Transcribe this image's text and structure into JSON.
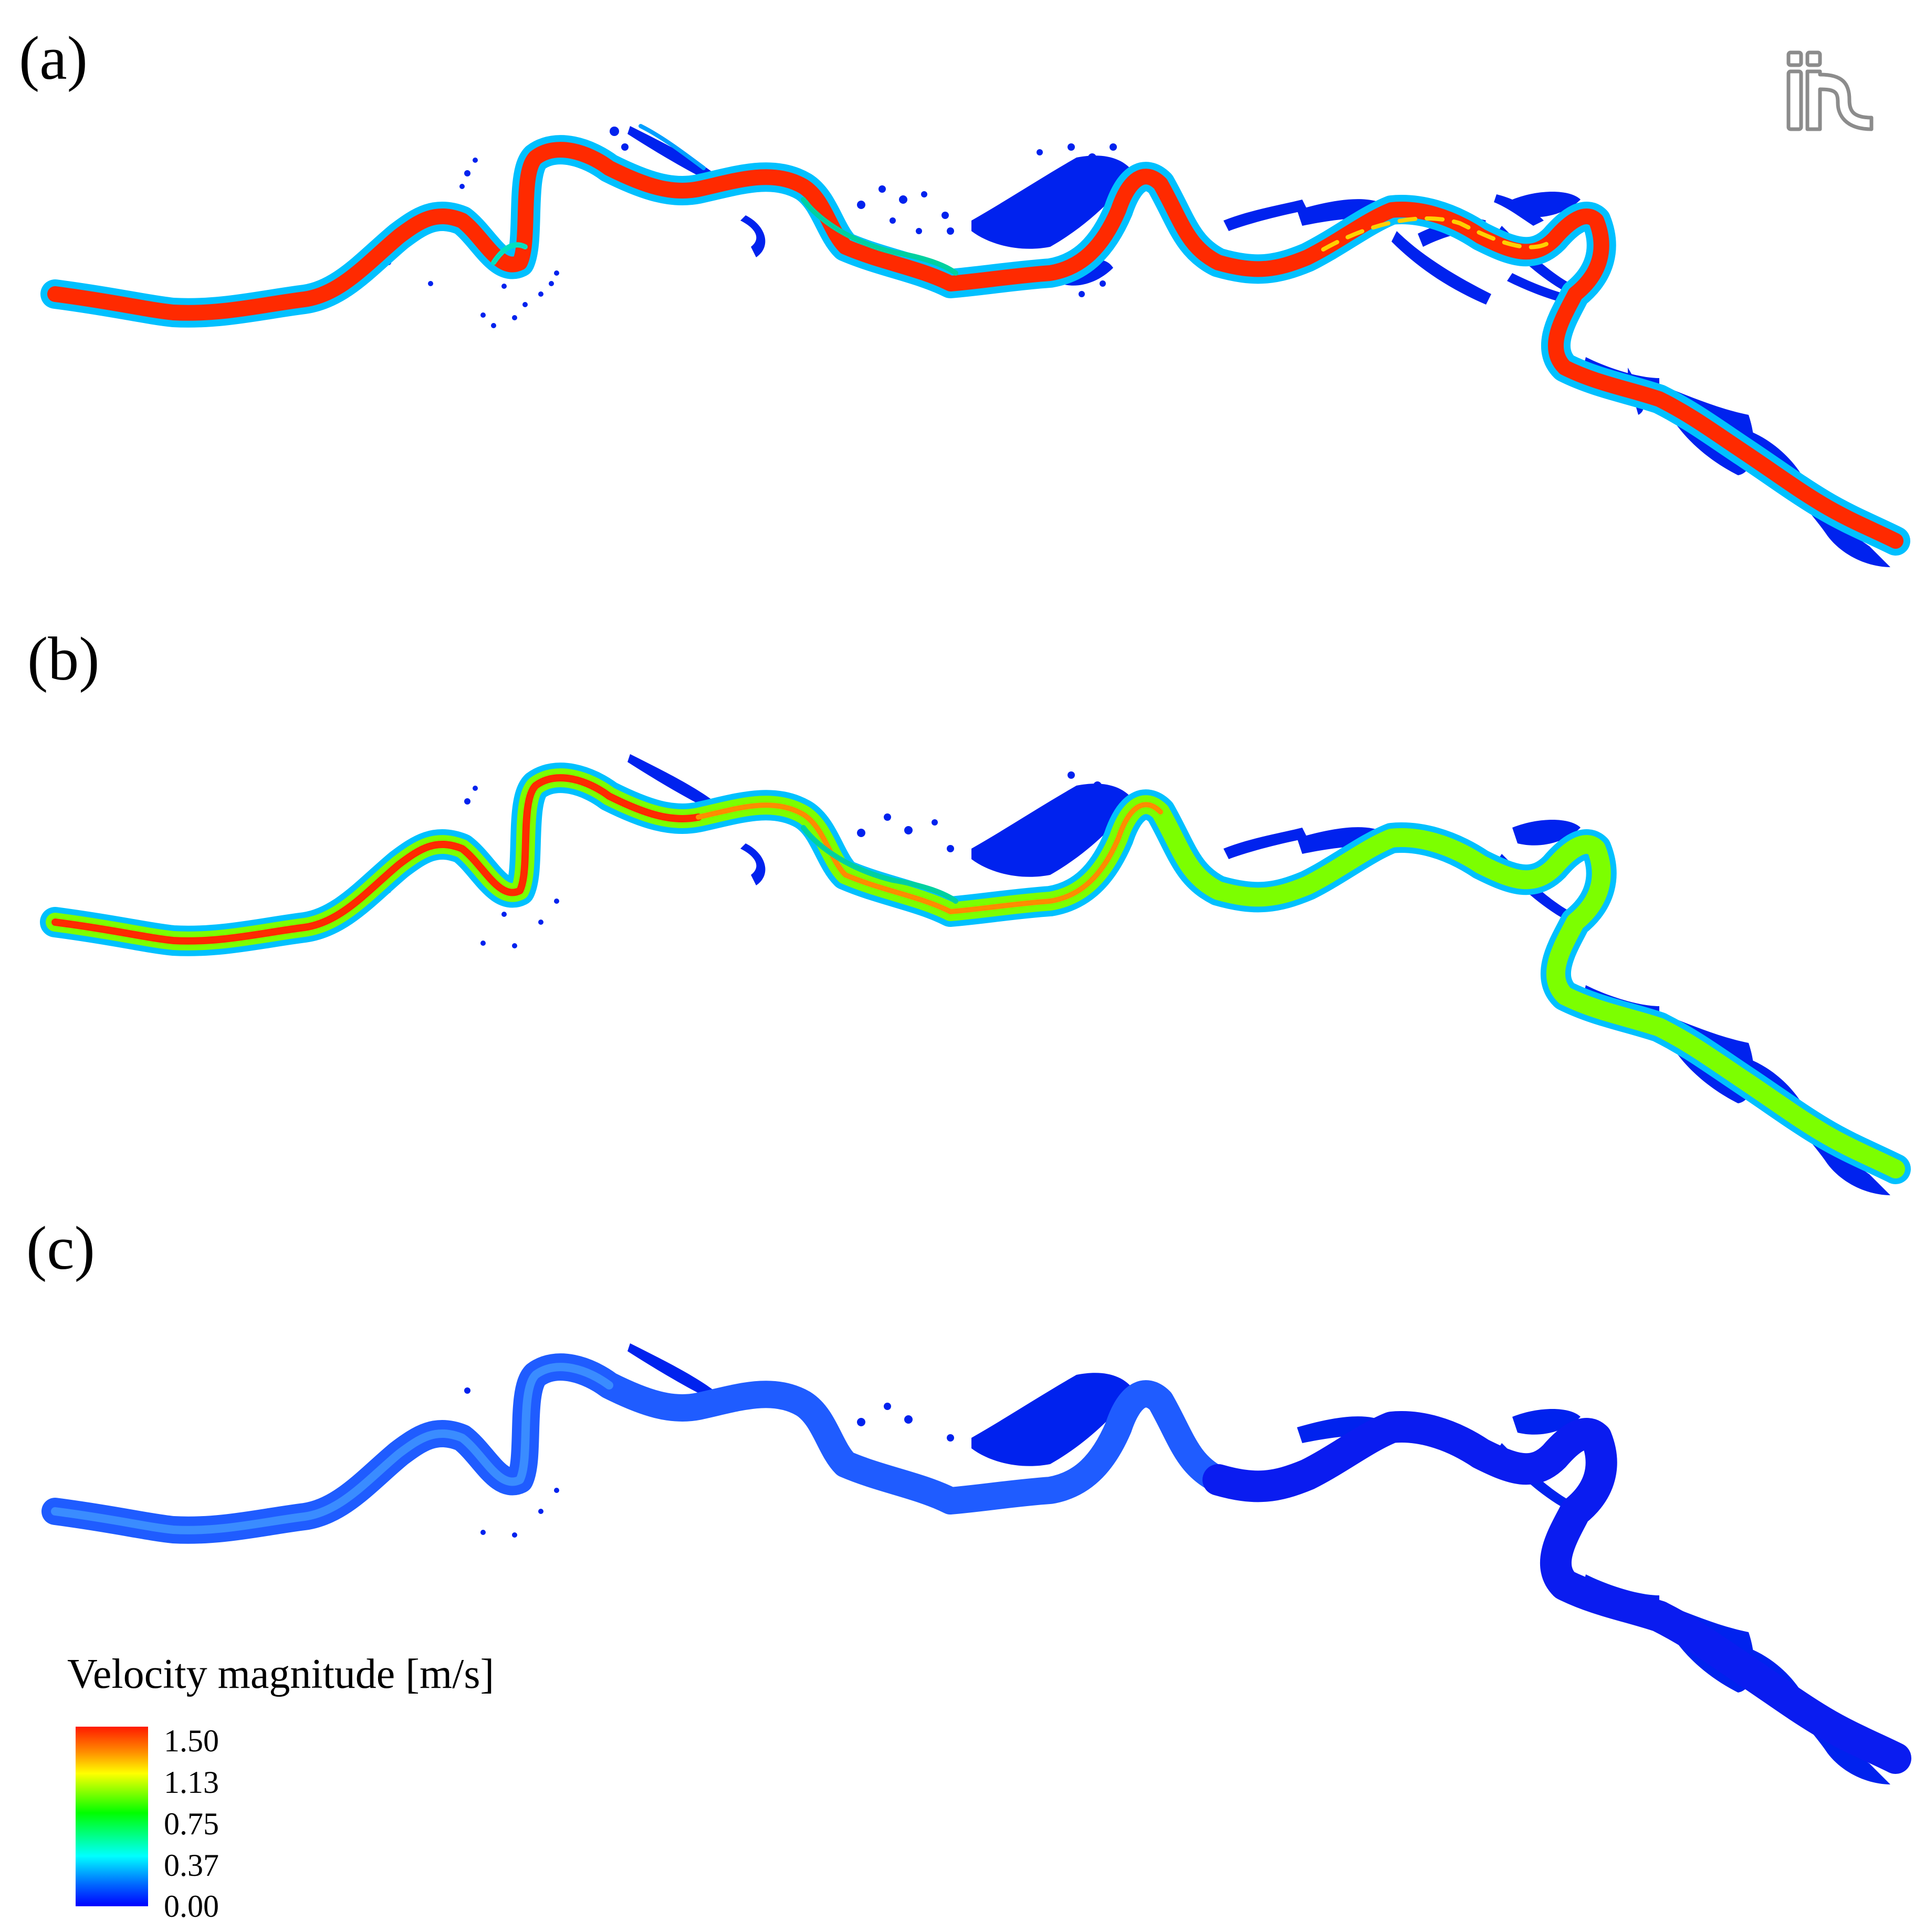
{
  "panels": [
    {
      "label": "(a)",
      "flow_level": "high"
    },
    {
      "label": "(b)",
      "flow_level": "medium"
    },
    {
      "label": "(c)",
      "flow_level": "low"
    }
  ],
  "legend": {
    "title": "Velocity magnitude [m/s]",
    "ticks": [
      "1.50",
      "1.13",
      "0.75",
      "0.37",
      "0.00"
    ],
    "colormap": [
      "#ff1a00",
      "#ff8c00",
      "#ffff00",
      "#00ff00",
      "#00ffff",
      "#0066ff",
      "#0000ff"
    ]
  },
  "logo": {
    "name": "iric-logo",
    "text": "iRIC"
  },
  "colors": {
    "main_channel_a": "#ff2a00",
    "main_channel_b": "#7cff00",
    "main_channel_c": "#1f5cff",
    "floodplain": "#0022ee"
  }
}
